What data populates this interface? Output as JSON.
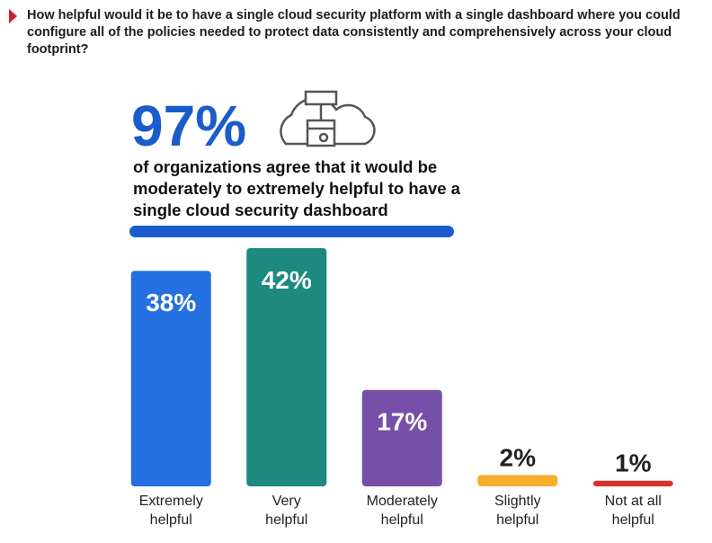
{
  "chart_data": {
    "type": "bar",
    "title": "How helpful would it be to have a single cloud security platform with a single dashboard where you could configure all of the policies needed to protect data consistently and comprehensively across your cloud footprint?",
    "headline": "97%",
    "headline_text": "of organizations agree that it would be moderately to extremely helpful to have a single cloud security dashboard",
    "categories": [
      "Extremely\nhelpful",
      "Very\nhelpful",
      "Moderately\nhelpful",
      "Slightly\nhelpful",
      "Not at all\nhelpful"
    ],
    "values": [
      38,
      42,
      17,
      2,
      1
    ],
    "value_labels": [
      "38%",
      "42%",
      "17%",
      "2%",
      "1%"
    ],
    "colors": [
      "#2470e0",
      "#1e8981",
      "#7650a8",
      "#f8ae2c",
      "#d9302a"
    ]
  }
}
